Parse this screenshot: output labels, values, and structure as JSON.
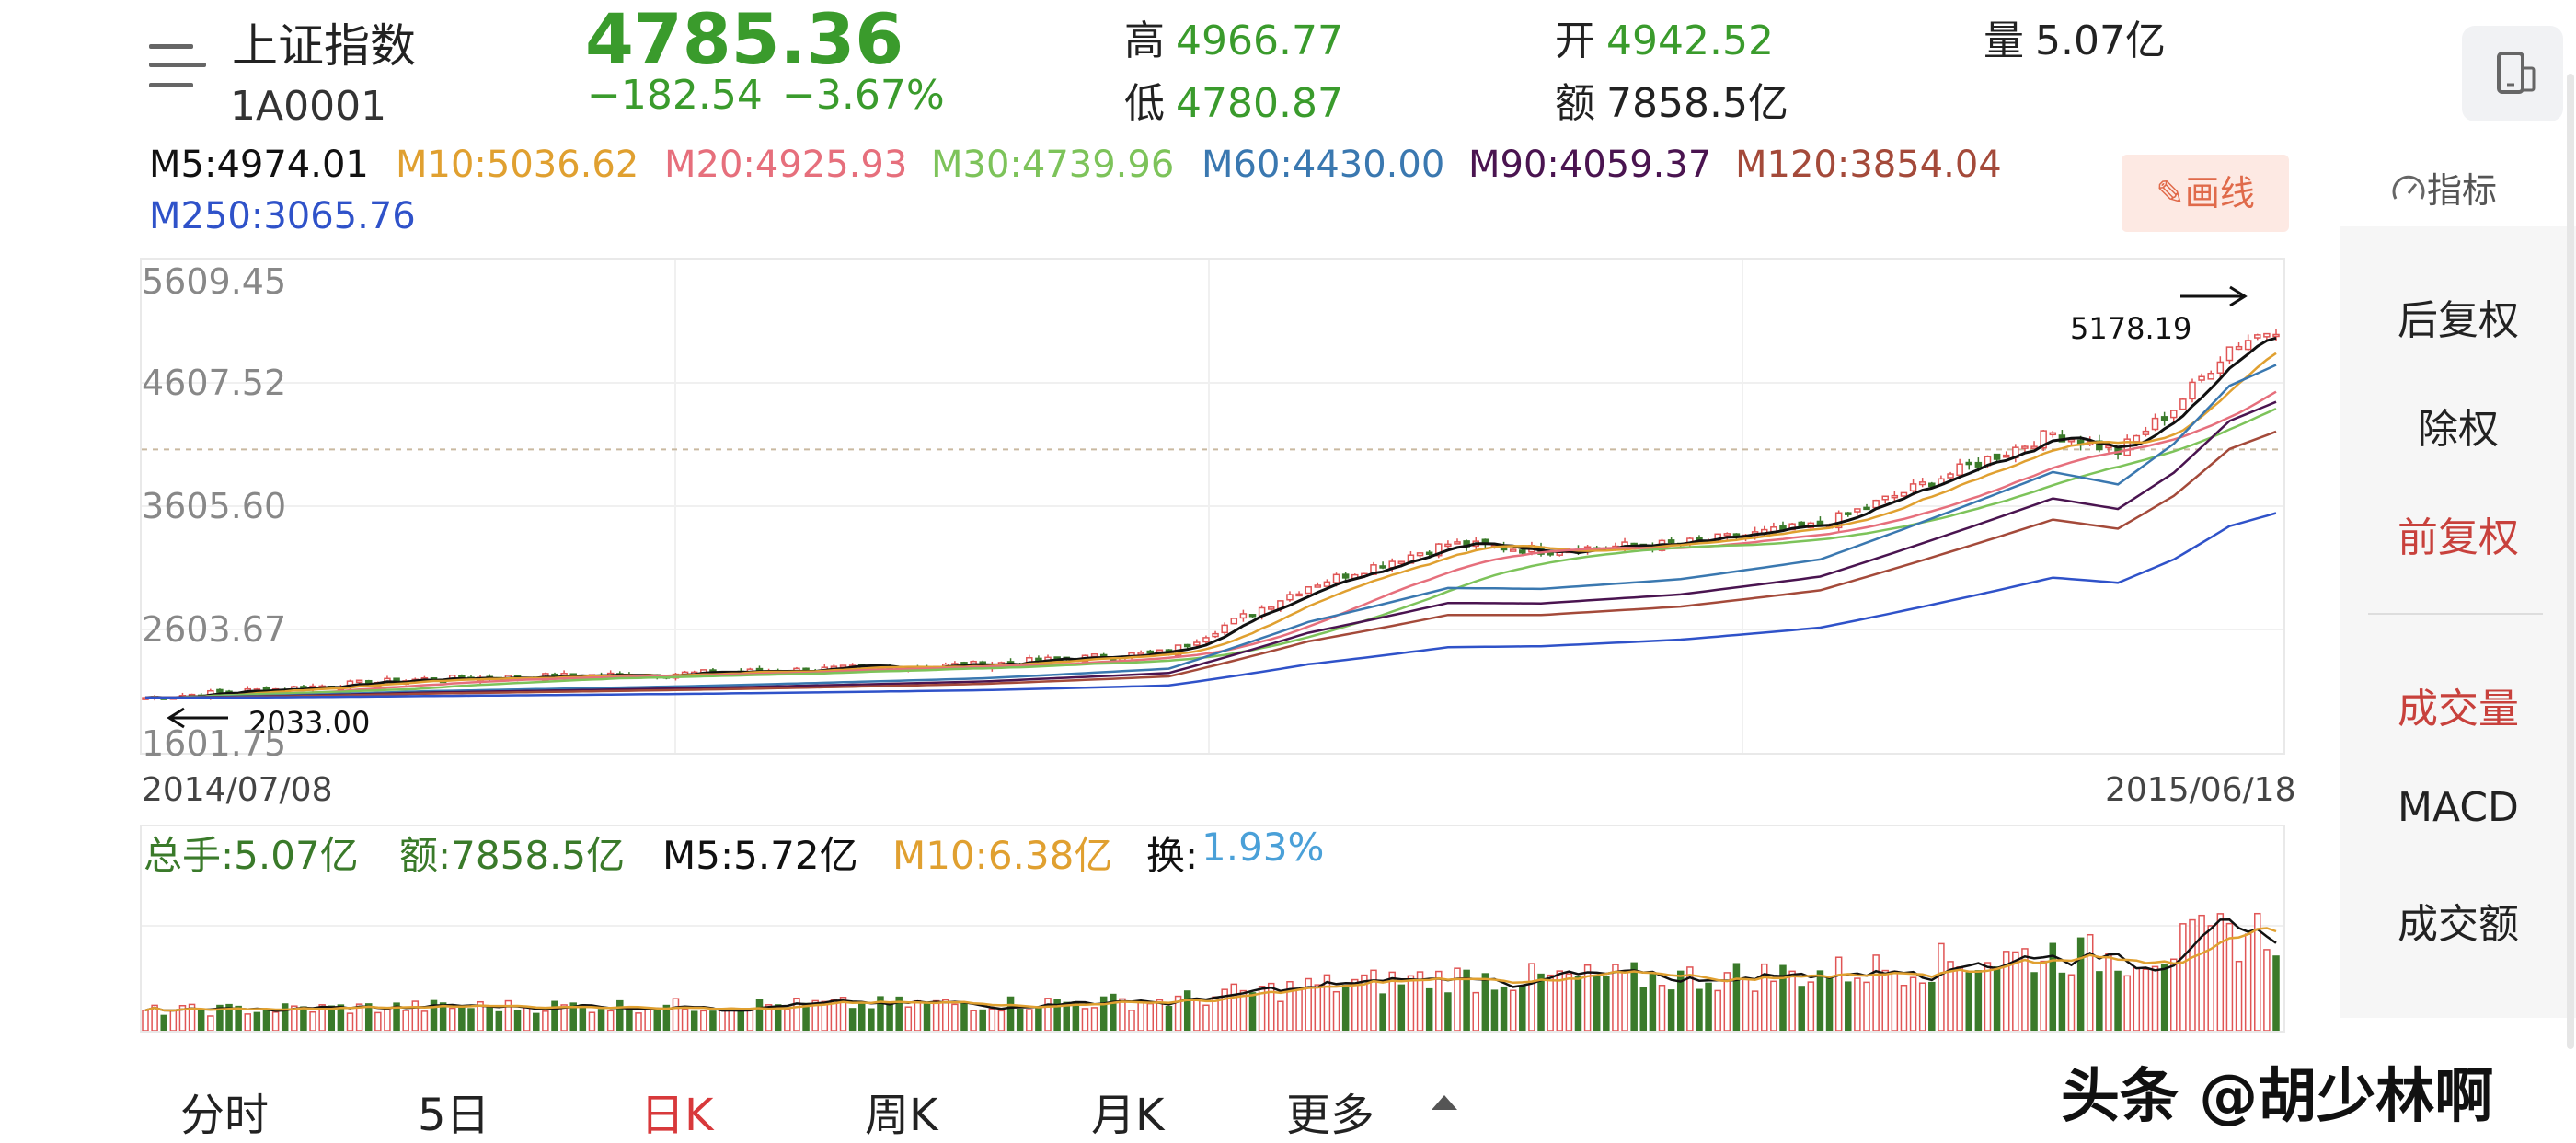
{
  "header": {
    "name": "上证指数",
    "code": "1A0001",
    "price": "4785.36",
    "change": "−182.54",
    "change_pct": "−3.67%",
    "high_label": "高",
    "high": "4966.77",
    "low_label": "低",
    "low": "4780.87",
    "open_label": "开",
    "open": "4942.52",
    "amount_label": "额",
    "amount": "7858.5亿",
    "volume_label": "量",
    "volume": "5.07亿"
  },
  "ma_legend": [
    {
      "text": "M5:4974.01",
      "color": "#111111"
    },
    {
      "text": "M10:5036.62",
      "color": "#e0a030"
    },
    {
      "text": "M20:4925.93",
      "color": "#e66f7c"
    },
    {
      "text": "M30:4739.96",
      "color": "#7dc35a"
    },
    {
      "text": "M60:4430.00",
      "color": "#3a78b0"
    },
    {
      "text": "M90:4059.37",
      "color": "#4a1450"
    },
    {
      "text": "M120:3854.04",
      "color": "#a44a3a"
    },
    {
      "text": "M250:3065.76",
      "color": "#2f52c9"
    }
  ],
  "toolbar": {
    "draw_label": "画线",
    "indicator_label": "指标"
  },
  "chart": {
    "y_labels": [
      "5609.45",
      "4607.52",
      "3605.60",
      "2603.67",
      "1601.75"
    ],
    "start_date": "2014/07/08",
    "end_date": "2015/06/18",
    "high_marker": "5178.19",
    "low_marker": "2033.00"
  },
  "volume_legend": [
    {
      "text": "总手:5.07亿",
      "color": "#3a7a2a"
    },
    {
      "text": "额:7858.5亿",
      "color": "#3a7a2a"
    },
    {
      "text": "M5:5.72亿",
      "color": "#111111"
    },
    {
      "text": "M10:6.38亿",
      "color": "#e0a030"
    },
    {
      "text": "换:",
      "color": "#111111"
    },
    {
      "text": "1.93%",
      "color": "#4aa0d8"
    }
  ],
  "side_panel": {
    "items": [
      "后复权",
      "除权",
      "前复权",
      "成交量",
      "MACD",
      "成交额"
    ]
  },
  "tabs": [
    "分时",
    "5日",
    "日K",
    "周K",
    "月K",
    "更多"
  ],
  "watermark": "头条 @胡少林啊",
  "colors": {
    "up": "#e05555",
    "down": "#3a7a2a",
    "accent": "#d8393b"
  }
}
